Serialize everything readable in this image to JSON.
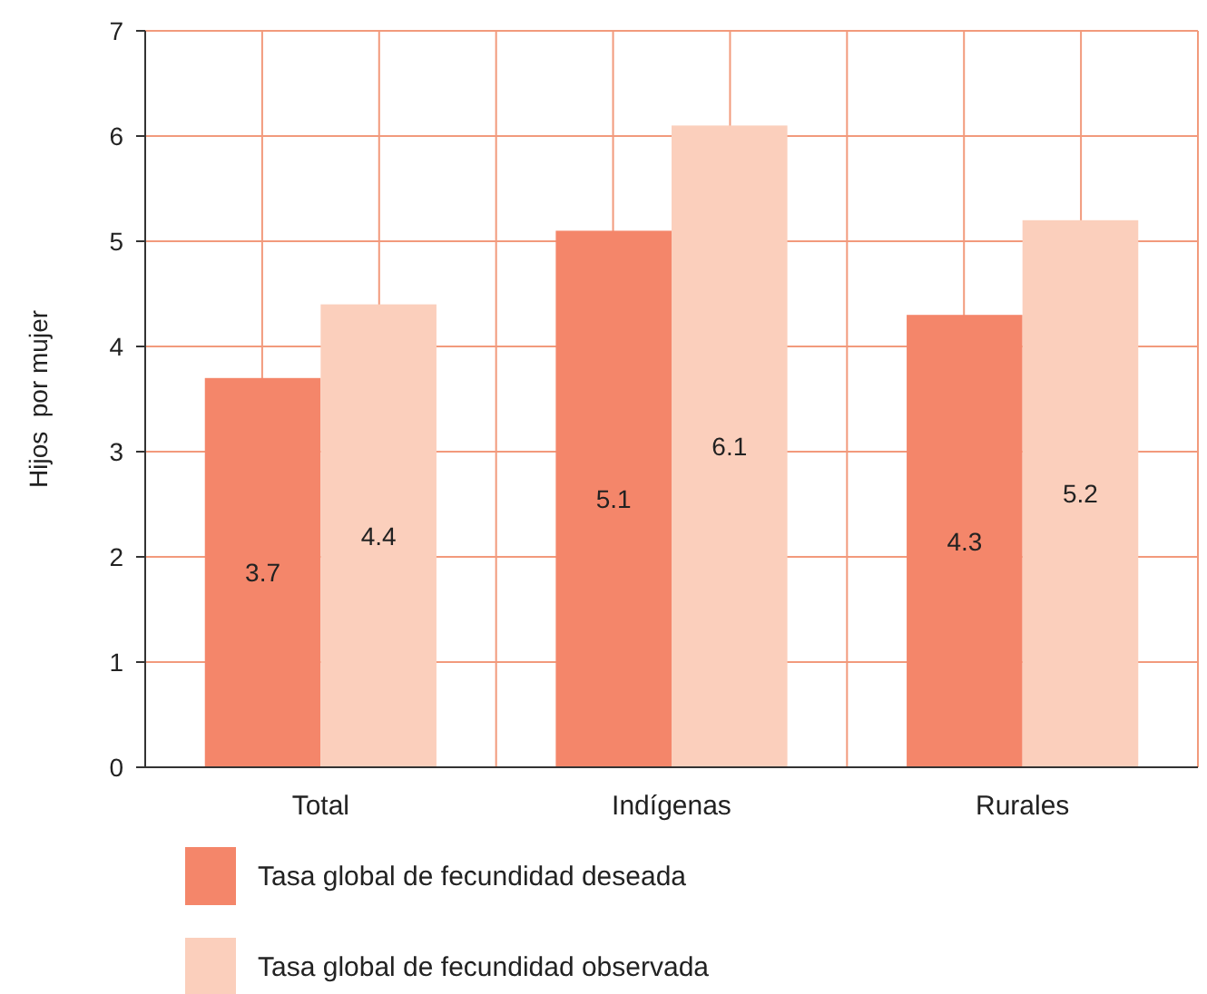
{
  "chart_data": {
    "type": "bar",
    "ylabel": "Hijos  por mujer",
    "categories": [
      "Total",
      "Indígenas",
      "Rurales"
    ],
    "series": [
      {
        "name": "Tasa global de fecundidad deseada",
        "color": "#f4866a",
        "values": [
          3.7,
          5.1,
          4.3
        ]
      },
      {
        "name": "Tasa global de fecundidad observada",
        "color": "#fbcfbc",
        "values": [
          4.4,
          6.1,
          5.2
        ]
      }
    ],
    "ylim": [
      0,
      7
    ],
    "yticks": [
      0,
      1,
      2,
      3,
      4,
      5,
      6,
      7
    ],
    "grid": true,
    "data_labels": true,
    "legend": "bottom"
  }
}
